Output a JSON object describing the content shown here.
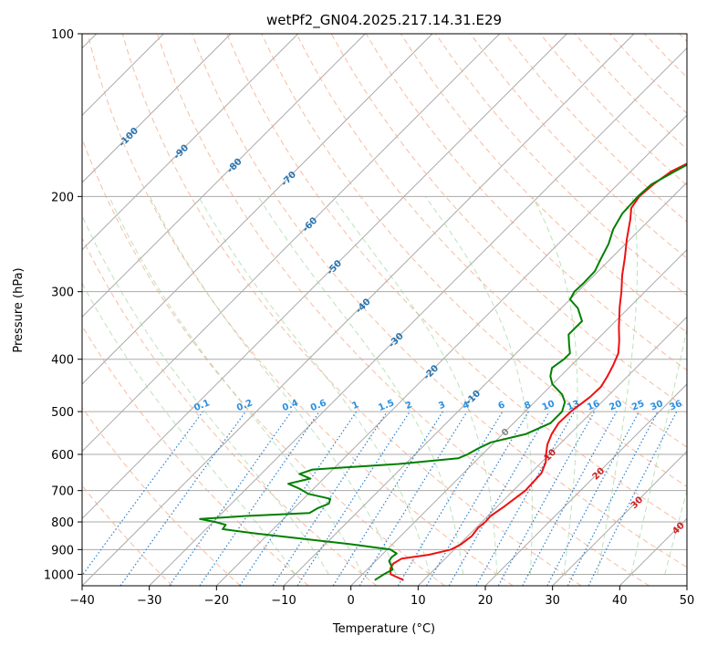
{
  "chart_data": {
    "type": "line",
    "title": "wetPf2_GN04.2025.217.14.31.E29",
    "xlabel": "Temperature (°C)",
    "ylabel": "Pressure (hPa)",
    "xlim": [
      -40,
      50
    ],
    "ylim": [
      1050,
      100
    ],
    "yscale": "log",
    "x_ticks": [
      "−40",
      "−30",
      "−20",
      "−10",
      "0",
      "10",
      "20",
      "30",
      "40",
      "50"
    ],
    "y_ticks": [
      {
        "p": 100,
        "label": "100"
      },
      {
        "p": 200,
        "label": "200"
      },
      {
        "p": 300,
        "label": "300"
      },
      {
        "p": 400,
        "label": "400"
      },
      {
        "p": 500,
        "label": "500"
      },
      {
        "p": 600,
        "label": "600"
      },
      {
        "p": 700,
        "label": "700"
      },
      {
        "p": 800,
        "label": "800"
      },
      {
        "p": 900,
        "label": "900"
      },
      {
        "p": 1000,
        "label": "1000"
      }
    ],
    "grid": true,
    "skew_isotherm_labels": [
      {
        "t": -100,
        "p": 155,
        "label": "-100"
      },
      {
        "t": -90,
        "p": 165,
        "label": "-90"
      },
      {
        "t": -80,
        "p": 175,
        "label": "-80"
      },
      {
        "t": -70,
        "p": 185,
        "label": "-70"
      },
      {
        "t": -60,
        "p": 225,
        "label": "-60"
      },
      {
        "t": -50,
        "p": 270,
        "label": "-50"
      },
      {
        "t": -40,
        "p": 318,
        "label": "-40"
      },
      {
        "t": -30,
        "p": 368,
        "label": "-30"
      },
      {
        "t": -20,
        "p": 422,
        "label": "-20"
      },
      {
        "t": -10,
        "p": 470,
        "label": "-10"
      },
      {
        "t": 0,
        "p": 545,
        "label": "0"
      },
      {
        "t": 10,
        "p": 600,
        "label": "10"
      },
      {
        "t": 20,
        "p": 650,
        "label": "20"
      },
      {
        "t": 30,
        "p": 735,
        "label": "30"
      },
      {
        "t": 40,
        "p": 820,
        "label": "40"
      }
    ],
    "mixing_ratio_labels": [
      "0.1",
      "0.2",
      "0.4",
      "0.6",
      "1",
      "1.5",
      "2",
      "3",
      "4",
      "6",
      "8",
      "10",
      "13",
      "16",
      "20",
      "25",
      "30",
      "36"
    ],
    "series": [
      {
        "color": "#ee1111",
        "points": [
          [
            1025,
            7.0
          ],
          [
            1000,
            4.2
          ],
          [
            975,
            3.3
          ],
          [
            955,
            3.0
          ],
          [
            935,
            3.5
          ],
          [
            920,
            7.0
          ],
          [
            900,
            9.5
          ],
          [
            880,
            10.2
          ],
          [
            850,
            10.6
          ],
          [
            820,
            10.3
          ],
          [
            800,
            10.5
          ],
          [
            780,
            10.4
          ],
          [
            750,
            11.0
          ],
          [
            700,
            11.8
          ],
          [
            650,
            11.6
          ],
          [
            620,
            10.6
          ],
          [
            600,
            9.5
          ],
          [
            575,
            8.2
          ],
          [
            550,
            7.3
          ],
          [
            525,
            6.7
          ],
          [
            500,
            6.8
          ],
          [
            470,
            7.5
          ],
          [
            450,
            7.6
          ],
          [
            430,
            7.0
          ],
          [
            410,
            6.2
          ],
          [
            390,
            5.2
          ],
          [
            370,
            3.5
          ],
          [
            350,
            1.5
          ],
          [
            320,
            -1.5
          ],
          [
            300,
            -3.5
          ],
          [
            280,
            -5.8
          ],
          [
            260,
            -8.0
          ],
          [
            240,
            -10.5
          ],
          [
            220,
            -13.0
          ],
          [
            210,
            -14.5
          ],
          [
            200,
            -15.0
          ],
          [
            190,
            -14.7
          ],
          [
            180,
            -14.0
          ],
          [
            170,
            -12.0
          ],
          [
            162,
            -9.5
          ],
          [
            155,
            -6.5
          ],
          [
            150,
            -5.0
          ],
          [
            140,
            -4.0
          ],
          [
            130,
            -3.0
          ],
          [
            120,
            -1.5
          ],
          [
            110,
            -0.5
          ],
          [
            100,
            1.0
          ]
        ]
      },
      {
        "color": "#008000",
        "points": [
          [
            1025,
            2.7
          ],
          [
            1000,
            3.2
          ],
          [
            980,
            3.8
          ],
          [
            960,
            2.8
          ],
          [
            945,
            2.0
          ],
          [
            930,
            1.8
          ],
          [
            915,
            2.0
          ],
          [
            900,
            0.5
          ],
          [
            880,
            -6.0
          ],
          [
            860,
            -14.0
          ],
          [
            840,
            -22.0
          ],
          [
            825,
            -27.5
          ],
          [
            810,
            -27.7
          ],
          [
            800,
            -29.7
          ],
          [
            790,
            -32.4
          ],
          [
            780,
            -26.0
          ],
          [
            770,
            -17.0
          ],
          [
            755,
            -16.5
          ],
          [
            740,
            -15.5
          ],
          [
            725,
            -16.0
          ],
          [
            710,
            -20.0
          ],
          [
            695,
            -22.0
          ],
          [
            680,
            -24.5
          ],
          [
            665,
            -22.0
          ],
          [
            652,
            -24.3
          ],
          [
            640,
            -23.0
          ],
          [
            625,
            -11.0
          ],
          [
            610,
            -3.0
          ],
          [
            600,
            -2.2
          ],
          [
            585,
            -1.5
          ],
          [
            570,
            -0.5
          ],
          [
            550,
            3.5
          ],
          [
            525,
            5.5
          ],
          [
            500,
            5.5
          ],
          [
            480,
            4.5
          ],
          [
            465,
            3.0
          ],
          [
            445,
            0.0
          ],
          [
            430,
            -1.5
          ],
          [
            415,
            -2.5
          ],
          [
            400,
            -2.0
          ],
          [
            390,
            -2.0
          ],
          [
            375,
            -3.5
          ],
          [
            360,
            -5.0
          ],
          [
            340,
            -5.0
          ],
          [
            322,
            -7.5
          ],
          [
            310,
            -10.0
          ],
          [
            300,
            -10.5
          ],
          [
            290,
            -10.4
          ],
          [
            275,
            -10.5
          ],
          [
            260,
            -11.5
          ],
          [
            245,
            -12.5
          ],
          [
            230,
            -14.0
          ],
          [
            215,
            -15.0
          ],
          [
            200,
            -15.2
          ],
          [
            190,
            -15.0
          ],
          [
            180,
            -13.5
          ],
          [
            170,
            -11.8
          ],
          [
            160,
            -10.5
          ],
          [
            150,
            -9.0
          ],
          [
            140,
            -8.0
          ],
          [
            130,
            -6.0
          ],
          [
            120,
            -4.0
          ],
          [
            110,
            -2.0
          ],
          [
            100,
            0.0
          ]
        ]
      }
    ]
  }
}
